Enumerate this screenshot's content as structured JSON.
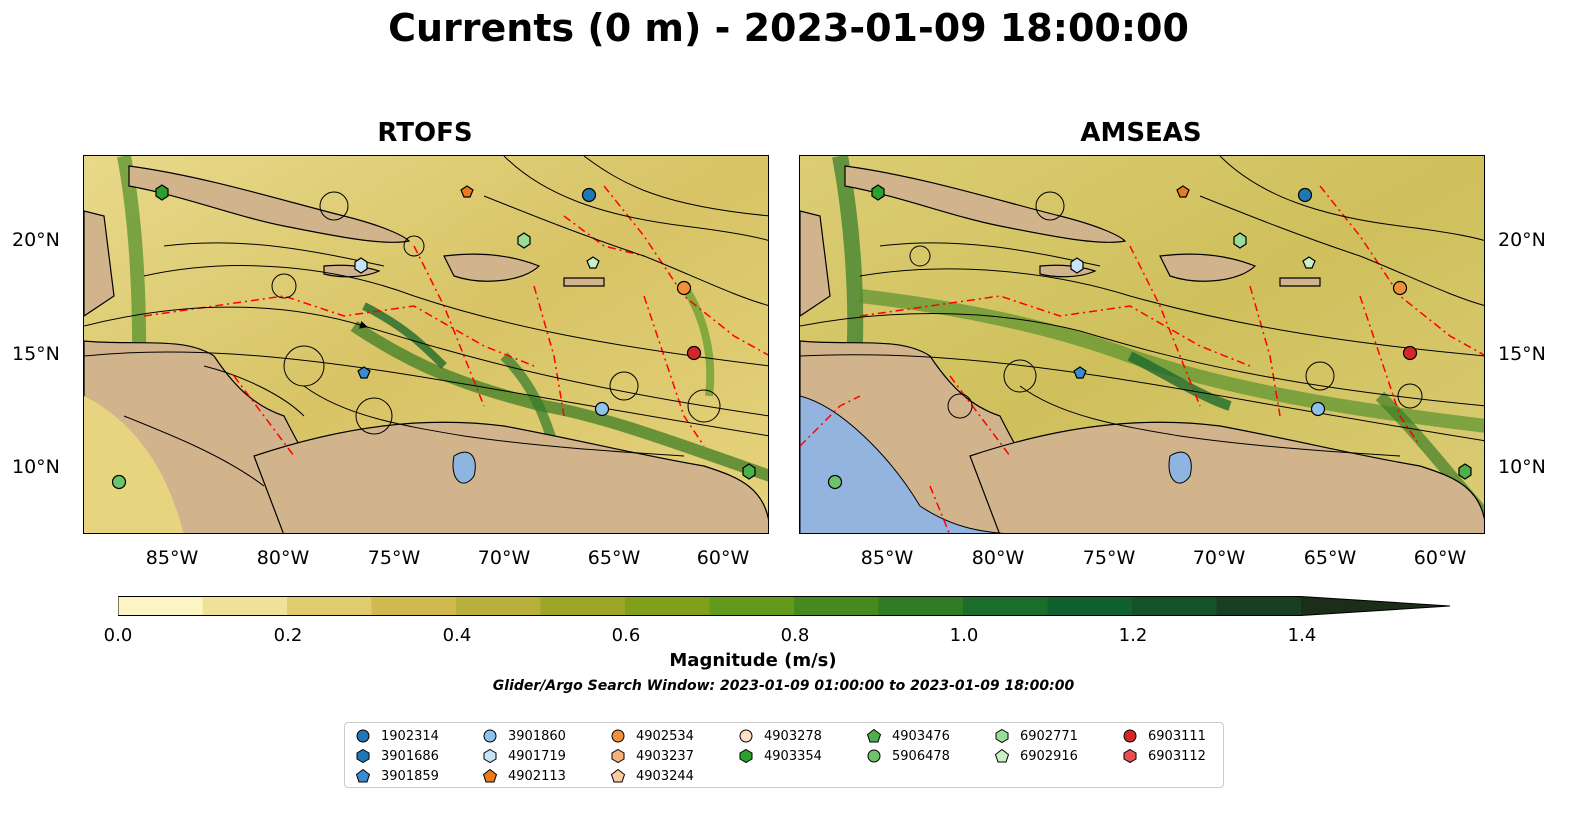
{
  "title": "Currents (0 m) - 2023-01-09 18:00:00",
  "panels": [
    {
      "title": "RTOFS"
    },
    {
      "title": "AMSEAS"
    }
  ],
  "lat_ticks": [
    "20°N",
    "15°N",
    "10°N"
  ],
  "lon_ticks": [
    "85°W",
    "80°W",
    "75°W",
    "70°W",
    "65°W",
    "60°W"
  ],
  "colorbar": {
    "label": "Magnitude (m/s)",
    "ticks": [
      "0.0",
      "0.2",
      "0.4",
      "0.6",
      "0.8",
      "1.0",
      "1.2",
      "1.4"
    ],
    "colors": [
      "#fcf5c3",
      "#efe19a",
      "#e0cb6e",
      "#d0b94f",
      "#b8b03a",
      "#9ea628",
      "#80a01c",
      "#629a1c",
      "#46891f",
      "#2e7a25",
      "#1a6d2b",
      "#11612e",
      "#14532a",
      "#183f22",
      "#1c2e19"
    ]
  },
  "search_window": "Glider/Argo Search Window: 2023-01-09 01:00:00 to 2023-01-09 18:00:00",
  "legend": [
    {
      "id": "1902314",
      "marker": "circle",
      "color": "#1f77b4"
    },
    {
      "id": "3901686",
      "marker": "hexagon",
      "color": "#1f77b4"
    },
    {
      "id": "3901859",
      "marker": "pentagon",
      "color": "#3a8cd0"
    },
    {
      "id": "3901860",
      "marker": "circle",
      "color": "#8ec2ea"
    },
    {
      "id": "4901719",
      "marker": "hexagon",
      "color": "#c6e3f7"
    },
    {
      "id": "4902113",
      "marker": "pentagon",
      "color": "#ec7a1c"
    },
    {
      "id": "4902534",
      "marker": "circle",
      "color": "#f0913a"
    },
    {
      "id": "4903237",
      "marker": "hexagon",
      "color": "#f7b27a"
    },
    {
      "id": "4903244",
      "marker": "pentagon",
      "color": "#fbcca0"
    },
    {
      "id": "4903278",
      "marker": "circle",
      "color": "#fde0c5"
    },
    {
      "id": "4903354",
      "marker": "hexagon",
      "color": "#2ca02c"
    },
    {
      "id": "4903476",
      "marker": "pentagon",
      "color": "#4cb04c"
    },
    {
      "id": "5906478",
      "marker": "circle",
      "color": "#6cc36c"
    },
    {
      "id": "6902771",
      "marker": "hexagon",
      "color": "#98dc98"
    },
    {
      "id": "6902916",
      "marker": "pentagon",
      "color": "#c8f2c4"
    },
    {
      "id": "6903111",
      "marker": "circle",
      "color": "#d62728"
    },
    {
      "id": "6903112",
      "marker": "hexagon",
      "color": "#e8504f"
    }
  ],
  "colors": {
    "land": "#d2b48c",
    "lake": "#a9c2e0",
    "eez": "#ff0000",
    "stream": "#000000"
  }
}
